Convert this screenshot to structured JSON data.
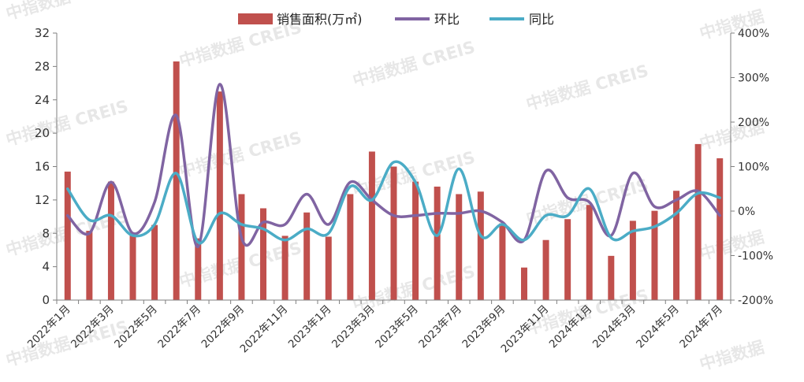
{
  "chart_data": {
    "type": "bar",
    "categories": [
      "2022年1月",
      "2022年2月",
      "2022年3月",
      "2022年4月",
      "2022年5月",
      "2022年6月",
      "2022年7月",
      "2022年8月",
      "2022年9月",
      "2022年10月",
      "2022年11月",
      "2022年12月",
      "2023年1月",
      "2023年2月",
      "2023年3月",
      "2023年4月",
      "2023年5月",
      "2023年6月",
      "2023年7月",
      "2023年8月",
      "2023年9月",
      "2023年10月",
      "2023年11月",
      "2023年12月",
      "2024年1月",
      "2024年2月",
      "2024年3月",
      "2024年4月",
      "2024年5月",
      "2024年6月",
      "2024年7月"
    ],
    "x_tick_labels": [
      "2022年1月",
      "2022年3月",
      "2022年5月",
      "2022年7月",
      "2022年9月",
      "2022年11月",
      "2023年1月",
      "2023年3月",
      "2023年5月",
      "2023年7月",
      "2023年9月",
      "2023年11月",
      "2024年1月",
      "2024年3月",
      "2024年5月",
      "2024年7月"
    ],
    "series": [
      {
        "name": "销售面积(万㎡)",
        "type": "bar",
        "axis": "left",
        "color": "#c0504d",
        "values": [
          15.4,
          8.3,
          14.2,
          7.8,
          9.0,
          28.6,
          7.4,
          25.0,
          12.7,
          11.0,
          7.7,
          10.5,
          7.6,
          12.7,
          17.8,
          16.0,
          14.2,
          13.6,
          12.7,
          13.0,
          9.2,
          3.9,
          7.2,
          9.7,
          11.4,
          5.3,
          9.5,
          10.7,
          13.1,
          18.7,
          17.0
        ]
      },
      {
        "name": "环比",
        "type": "line",
        "axis": "right",
        "color": "#8064a2",
        "values": [
          -10,
          -50,
          65,
          -50,
          20,
          215,
          -80,
          285,
          -60,
          -25,
          -30,
          38,
          -30,
          65,
          25,
          -10,
          -10,
          -5,
          -5,
          0,
          -25,
          -65,
          90,
          30,
          20,
          -55,
          85,
          10,
          25,
          45,
          -10
        ]
      },
      {
        "name": "同比",
        "type": "line",
        "axis": "right",
        "color": "#4bacc6",
        "values": [
          50,
          -20,
          -10,
          -55,
          -30,
          85,
          -70,
          -5,
          -30,
          -40,
          -65,
          -40,
          -50,
          55,
          25,
          110,
          65,
          -55,
          95,
          -55,
          -30,
          -65,
          -10,
          -10,
          50,
          -60,
          -45,
          -35,
          -5,
          40,
          30
        ]
      }
    ],
    "ylim_left": [
      0,
      32
    ],
    "yticks_left": [
      "0",
      "4",
      "8",
      "12",
      "16",
      "20",
      "24",
      "28",
      "32"
    ],
    "ylim_right": [
      -200,
      400
    ],
    "yticks_right": [
      "-200%",
      "-100%",
      "0%",
      "100%",
      "200%",
      "300%",
      "400%"
    ],
    "legend_position": "top-center",
    "grid": false
  },
  "watermark": {
    "text_full": "中指数据 CREIS",
    "text_short": "中指数据"
  }
}
